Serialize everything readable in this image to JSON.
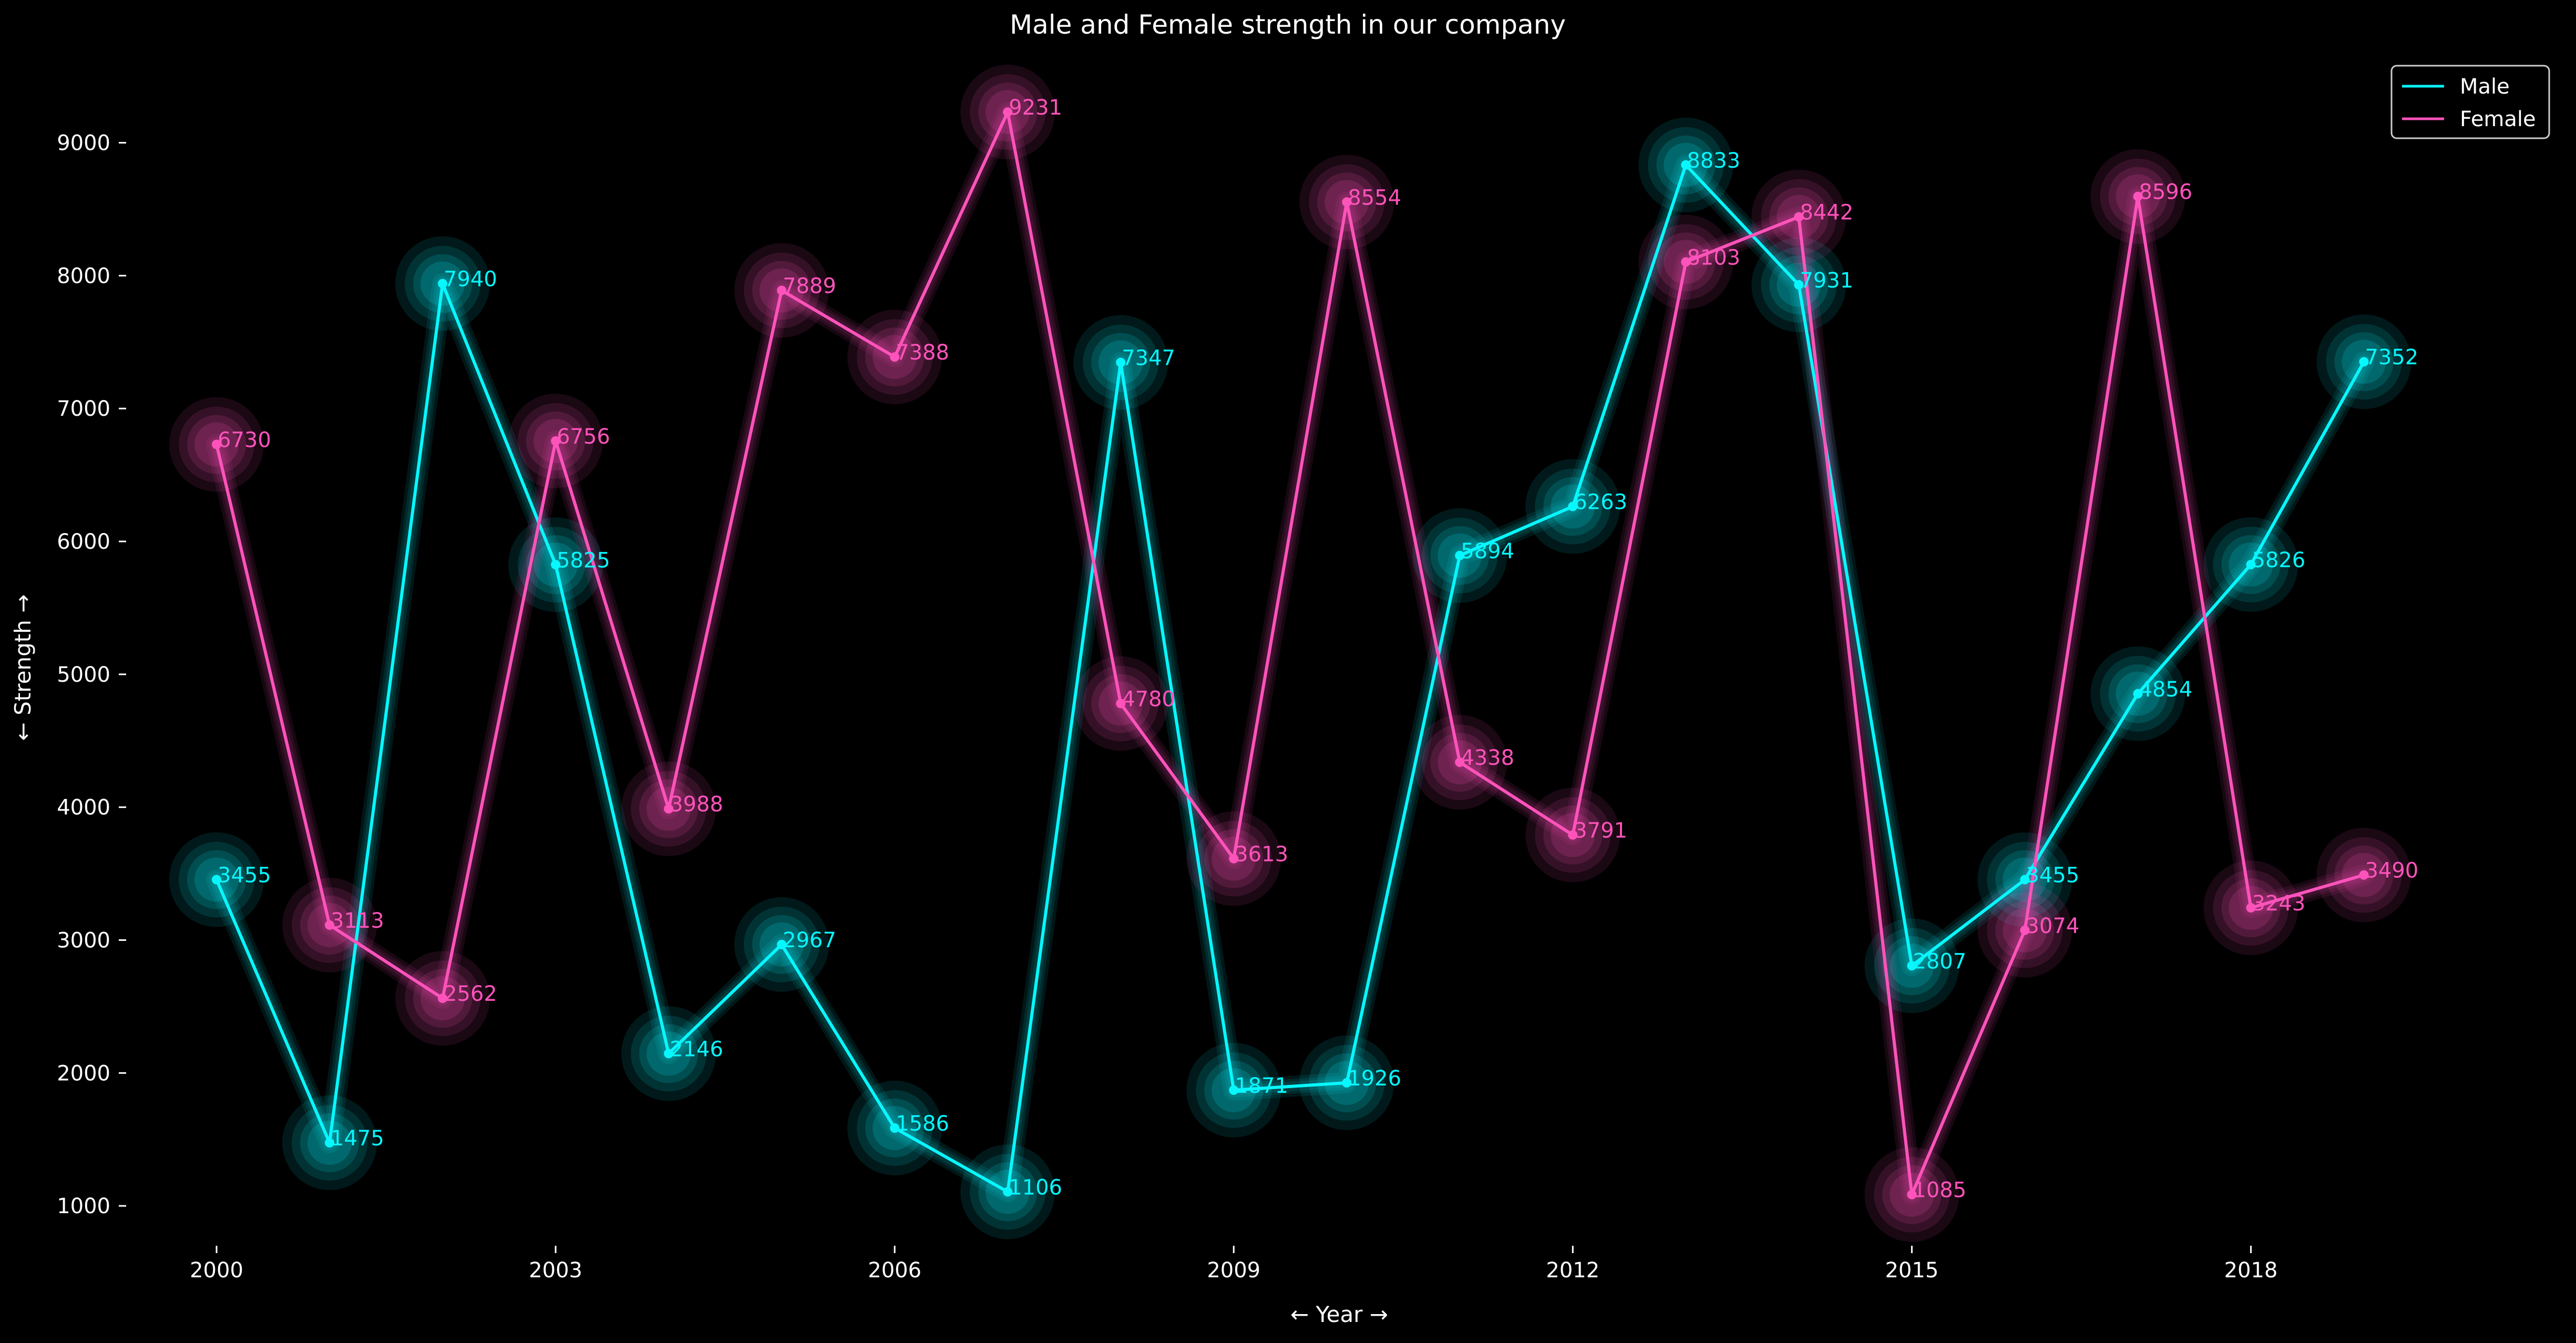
{
  "chart_data": {
    "type": "line",
    "title": "Male and Female strength in our company",
    "xlabel": "← Year →",
    "ylabel": "← Strength →",
    "x": [
      2000,
      2001,
      2002,
      2003,
      2004,
      2005,
      2006,
      2007,
      2008,
      2009,
      2010,
      2011,
      2012,
      2013,
      2014,
      2015,
      2016,
      2017,
      2018,
      2019
    ],
    "xticks": [
      "2000",
      "2003",
      "2006",
      "2009",
      "2012",
      "2015",
      "2018"
    ],
    "yticks": [
      "1000",
      "2000",
      "3000",
      "4000",
      "5000",
      "6000",
      "7000",
      "8000",
      "9000"
    ],
    "xlim": [
      1999.2,
      2020.5
    ],
    "ylim": [
      700,
      9560
    ],
    "grid": false,
    "legend_position": "top-right",
    "series": [
      {
        "name": "Male",
        "color": "#08F7FE",
        "values": [
          3455,
          1475,
          7940,
          5825,
          2146,
          2967,
          1586,
          1106,
          7347,
          1871,
          1926,
          5894,
          6263,
          8833,
          7931,
          2807,
          3455,
          4854,
          5826,
          7352
        ]
      },
      {
        "name": "Female",
        "color": "#FE53BB",
        "values": [
          6730,
          3113,
          2562,
          6756,
          3988,
          7889,
          7388,
          9231,
          4780,
          3613,
          8554,
          4338,
          3791,
          8103,
          8442,
          1085,
          3074,
          8596,
          3243,
          3490
        ]
      }
    ]
  }
}
